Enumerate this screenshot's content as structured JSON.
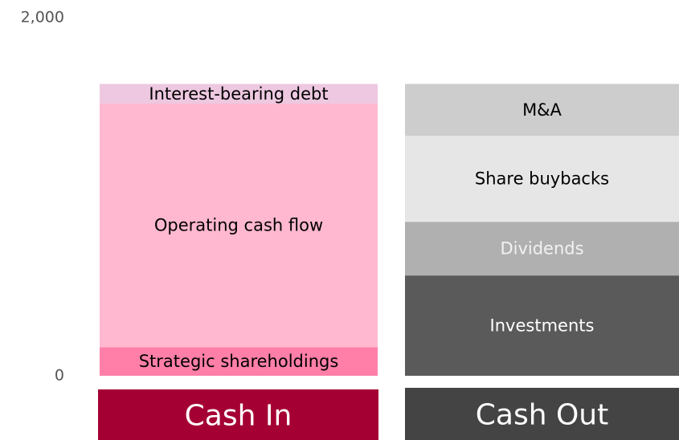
{
  "chart_data": {
    "type": "stacked_bar",
    "categories": [
      "Cash In",
      "Cash Out"
    ],
    "category_colors": [
      "#a50034",
      "#444444"
    ],
    "series": [
      {
        "name": "Strategic shareholdings",
        "color": "#ff7fa8",
        "label_color": "#000000",
        "values": [
          160,
          null
        ]
      },
      {
        "name": "Operating cash flow",
        "color": "#ffb8cf",
        "label_color": "#000000",
        "values": [
          1360,
          null
        ]
      },
      {
        "name": "Interest-bearing debt",
        "color": "#edc8e0",
        "label_color": "#000000",
        "values": [
          110,
          null
        ]
      },
      {
        "name": "Investments",
        "color": "#5a5a5a",
        "label_color": "#ffffff",
        "values": [
          null,
          560
        ]
      },
      {
        "name": "Dividends",
        "color": "#b0b0b0",
        "label_color": "#f2f2f2",
        "values": [
          null,
          300
        ]
      },
      {
        "name": "Share buybacks",
        "color": "#e6e6e6",
        "label_color": "#000000",
        "values": [
          null,
          480
        ]
      },
      {
        "name": "M&A",
        "color": "#cdcdcd",
        "label_color": "#000000",
        "values": [
          null,
          290
        ]
      }
    ],
    "ylim": [
      0,
      2000
    ],
    "yticks": [
      0,
      {
        "value": 2000,
        "label": "2,000"
      }
    ]
  }
}
